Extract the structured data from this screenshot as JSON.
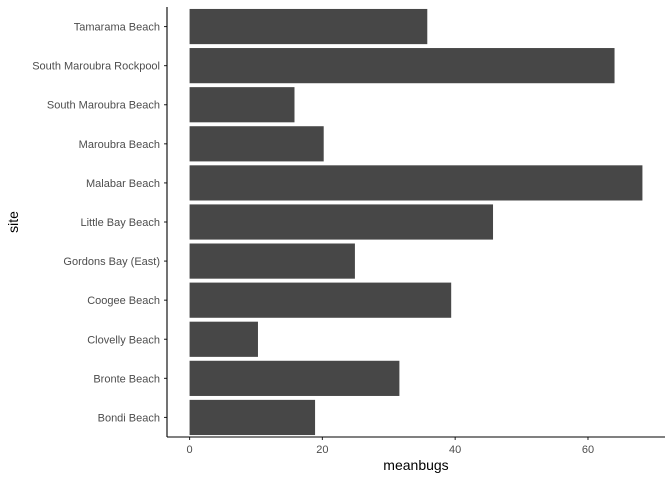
{
  "chart_data": {
    "type": "bar",
    "orientation": "horizontal",
    "categories": [
      "Bondi Beach",
      "Bronte Beach",
      "Clovelly Beach",
      "Coogee Beach",
      "Gordons Bay (East)",
      "Little Bay Beach",
      "Malabar Beach",
      "Maroubra Beach",
      "South Maroubra Beach",
      "South Maroubra Rockpool",
      "Tamarama Beach"
    ],
    "values": [
      18.9,
      31.6,
      10.3,
      39.4,
      24.9,
      45.7,
      68.2,
      20.2,
      15.8,
      64.0,
      35.8
    ],
    "xlabel": "meanbugs",
    "ylabel": "site",
    "xlim": [
      -3.4,
      71.6
    ],
    "xticks": [
      "0",
      "20",
      "40",
      "60"
    ],
    "tick_values": [
      0,
      20,
      40,
      60
    ],
    "bar_color": "#474747",
    "grid": false,
    "legend": "none"
  }
}
